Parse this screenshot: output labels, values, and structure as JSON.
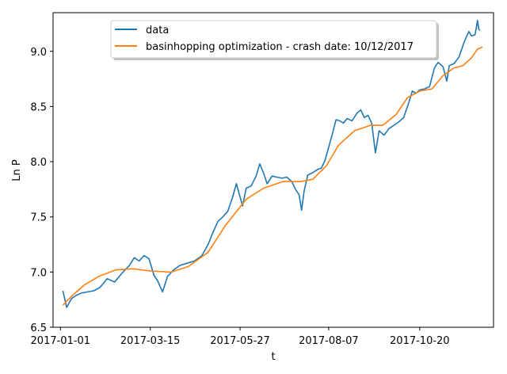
{
  "chart_data": {
    "type": "line",
    "xlabel": "t",
    "ylabel": "Ln P",
    "ylim": [
      6.5,
      9.35
    ],
    "xlim": [
      "2016-12-26",
      "2017-12-19"
    ],
    "x_tick_labels": [
      "2017-01-01",
      "2017-03-15",
      "2017-05-27",
      "2017-08-07",
      "2017-10-20"
    ],
    "y_tick_labels": [
      "6.5",
      "7.0",
      "7.5",
      "8.0",
      "8.5",
      "9.0"
    ],
    "y_ticks": [
      6.5,
      7.0,
      7.5,
      8.0,
      8.5,
      9.0
    ],
    "grid": false,
    "legend_position": "top-center",
    "series": [
      {
        "name": "data",
        "color": "#1f77b4",
        "points": [
          [
            "2017-01-03",
            6.83
          ],
          [
            "2017-01-06",
            6.68
          ],
          [
            "2017-01-10",
            6.76
          ],
          [
            "2017-01-14",
            6.79
          ],
          [
            "2017-01-18",
            6.81
          ],
          [
            "2017-01-23",
            6.82
          ],
          [
            "2017-01-28",
            6.83
          ],
          [
            "2017-02-02",
            6.86
          ],
          [
            "2017-02-08",
            6.94
          ],
          [
            "2017-02-14",
            6.91
          ],
          [
            "2017-02-20",
            6.99
          ],
          [
            "2017-02-26",
            7.06
          ],
          [
            "2017-03-02",
            7.13
          ],
          [
            "2017-03-06",
            7.1
          ],
          [
            "2017-03-10",
            7.15
          ],
          [
            "2017-03-14",
            7.12
          ],
          [
            "2017-03-18",
            6.97
          ],
          [
            "2017-03-21",
            6.92
          ],
          [
            "2017-03-25",
            6.82
          ],
          [
            "2017-03-29",
            6.96
          ],
          [
            "2017-04-03",
            7.02
          ],
          [
            "2017-04-08",
            7.06
          ],
          [
            "2017-04-14",
            7.08
          ],
          [
            "2017-04-20",
            7.1
          ],
          [
            "2017-04-26",
            7.15
          ],
          [
            "2017-05-01",
            7.25
          ],
          [
            "2017-05-05",
            7.36
          ],
          [
            "2017-05-09",
            7.46
          ],
          [
            "2017-05-13",
            7.5
          ],
          [
            "2017-05-17",
            7.55
          ],
          [
            "2017-05-21",
            7.68
          ],
          [
            "2017-05-24",
            7.8
          ],
          [
            "2017-05-26",
            7.72
          ],
          [
            "2017-05-29",
            7.6
          ],
          [
            "2017-06-01",
            7.76
          ],
          [
            "2017-06-05",
            7.78
          ],
          [
            "2017-06-09",
            7.87
          ],
          [
            "2017-06-12",
            7.98
          ],
          [
            "2017-06-15",
            7.9
          ],
          [
            "2017-06-18",
            7.8
          ],
          [
            "2017-06-22",
            7.87
          ],
          [
            "2017-06-26",
            7.86
          ],
          [
            "2017-06-30",
            7.85
          ],
          [
            "2017-07-04",
            7.86
          ],
          [
            "2017-07-08",
            7.82
          ],
          [
            "2017-07-11",
            7.75
          ],
          [
            "2017-07-14",
            7.7
          ],
          [
            "2017-07-16",
            7.56
          ],
          [
            "2017-07-18",
            7.73
          ],
          [
            "2017-07-21",
            7.88
          ],
          [
            "2017-07-25",
            7.9
          ],
          [
            "2017-07-29",
            7.93
          ],
          [
            "2017-08-01",
            7.94
          ],
          [
            "2017-08-04",
            8.01
          ],
          [
            "2017-08-07",
            8.13
          ],
          [
            "2017-08-10",
            8.25
          ],
          [
            "2017-08-13",
            8.38
          ],
          [
            "2017-08-16",
            8.37
          ],
          [
            "2017-08-19",
            8.35
          ],
          [
            "2017-08-22",
            8.39
          ],
          [
            "2017-08-26",
            8.37
          ],
          [
            "2017-08-30",
            8.44
          ],
          [
            "2017-09-02",
            8.47
          ],
          [
            "2017-09-05",
            8.4
          ],
          [
            "2017-09-08",
            8.42
          ],
          [
            "2017-09-11",
            8.35
          ],
          [
            "2017-09-14",
            8.08
          ],
          [
            "2017-09-17",
            8.28
          ],
          [
            "2017-09-21",
            8.24
          ],
          [
            "2017-09-25",
            8.3
          ],
          [
            "2017-09-29",
            8.33
          ],
          [
            "2017-10-03",
            8.36
          ],
          [
            "2017-10-07",
            8.4
          ],
          [
            "2017-10-11",
            8.53
          ],
          [
            "2017-10-14",
            8.64
          ],
          [
            "2017-10-17",
            8.62
          ],
          [
            "2017-10-20",
            8.65
          ],
          [
            "2017-10-24",
            8.66
          ],
          [
            "2017-10-28",
            8.68
          ],
          [
            "2017-11-01",
            8.85
          ],
          [
            "2017-11-04",
            8.9
          ],
          [
            "2017-11-08",
            8.86
          ],
          [
            "2017-11-11",
            8.73
          ],
          [
            "2017-11-13",
            8.87
          ],
          [
            "2017-11-17",
            8.89
          ],
          [
            "2017-11-21",
            8.95
          ],
          [
            "2017-11-25",
            9.08
          ],
          [
            "2017-11-29",
            9.18
          ],
          [
            "2017-12-01",
            9.14
          ],
          [
            "2017-12-04",
            9.15
          ],
          [
            "2017-12-06",
            9.28
          ],
          [
            "2017-12-07",
            9.2
          ],
          [
            "2017-12-08",
            9.19
          ]
        ]
      },
      {
        "name": "basinhopping optimization - crash date: 10/12/2017",
        "color": "#ff7f0e",
        "points": [
          [
            "2017-01-03",
            6.7
          ],
          [
            "2017-01-10",
            6.78
          ],
          [
            "2017-01-20",
            6.88
          ],
          [
            "2017-02-01",
            6.96
          ],
          [
            "2017-02-15",
            7.02
          ],
          [
            "2017-03-01",
            7.03
          ],
          [
            "2017-03-15",
            7.01
          ],
          [
            "2017-04-01",
            7.0
          ],
          [
            "2017-04-15",
            7.05
          ],
          [
            "2017-05-01",
            7.18
          ],
          [
            "2017-05-15",
            7.42
          ],
          [
            "2017-06-01",
            7.66
          ],
          [
            "2017-06-15",
            7.76
          ],
          [
            "2017-07-01",
            7.82
          ],
          [
            "2017-07-15",
            7.82
          ],
          [
            "2017-07-25",
            7.84
          ],
          [
            "2017-08-05",
            7.96
          ],
          [
            "2017-08-15",
            8.15
          ],
          [
            "2017-08-28",
            8.28
          ],
          [
            "2017-09-10",
            8.33
          ],
          [
            "2017-09-20",
            8.33
          ],
          [
            "2017-10-01",
            8.43
          ],
          [
            "2017-10-10",
            8.58
          ],
          [
            "2017-10-20",
            8.64
          ],
          [
            "2017-10-30",
            8.66
          ],
          [
            "2017-11-08",
            8.78
          ],
          [
            "2017-11-17",
            8.85
          ],
          [
            "2017-11-24",
            8.87
          ],
          [
            "2017-12-01",
            8.94
          ],
          [
            "2017-12-06",
            9.02
          ],
          [
            "2017-12-10",
            9.04
          ]
        ]
      }
    ]
  }
}
